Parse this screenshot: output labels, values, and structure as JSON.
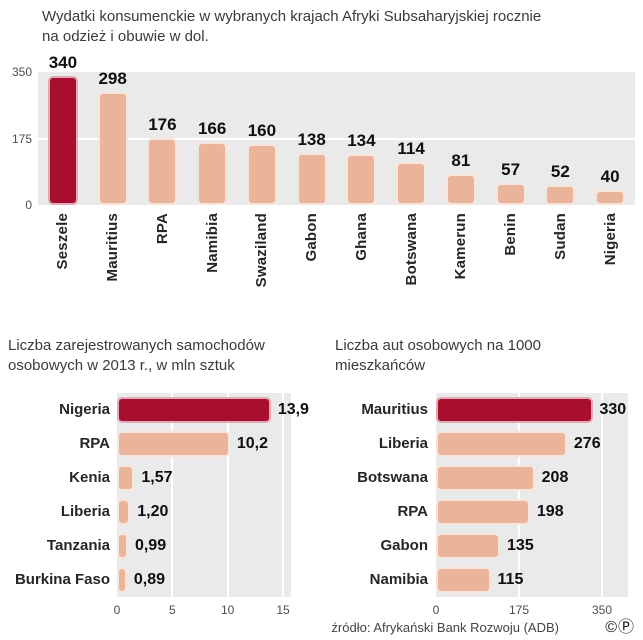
{
  "page": {
    "source": "źródło: Afrykański Bank Rozwoju (ADB)",
    "copyright": "©Ⓟ"
  },
  "colors": {
    "highlight": "#a80e2e",
    "bar": "#e9b49a",
    "plot_bg": "#eaeaea"
  },
  "chart_data": [
    {
      "type": "bar",
      "title": "Wydatki konsumenckie w wybranych krajach Afryki Subsaharyjskiej rocznie na odzież i obuwie w dol.",
      "categories": [
        "Seszele",
        "Mauritius",
        "RPA",
        "Namibia",
        "Swaziland",
        "Gabon",
        "Ghana",
        "Botswana",
        "Kamerun",
        "Benin",
        "Sudan",
        "Nigeria"
      ],
      "values": [
        340,
        298,
        176,
        166,
        160,
        138,
        134,
        114,
        81,
        57,
        52,
        40
      ],
      "value_labels": [
        "340",
        "298",
        "176",
        "166",
        "160",
        "138",
        "134",
        "114",
        "81",
        "57",
        "52",
        "40"
      ],
      "ylim": [
        0,
        350
      ],
      "yticks": [
        0,
        175,
        350
      ],
      "highlight_index": 0,
      "grid": "horizontal-midline",
      "legend": "none"
    },
    {
      "type": "bar-horizontal",
      "title": "Liczba zarejestrowanych samochodów osobowych w 2013 r., w mln sztuk",
      "categories": [
        "Nigeria",
        "RPA",
        "Kenia",
        "Liberia",
        "Tanzania",
        "Burkina Faso"
      ],
      "values": [
        13.9,
        10.2,
        1.57,
        1.2,
        0.99,
        0.89
      ],
      "value_labels": [
        "13,9",
        "10,2",
        "1,57",
        "1,20",
        "0,99",
        "0,89"
      ],
      "xlim": [
        0,
        15
      ],
      "xticks": [
        0,
        5,
        10,
        15
      ],
      "xtick_labels": [
        "0",
        "5",
        "10",
        "15"
      ],
      "highlight_index": 0,
      "legend": "none"
    },
    {
      "type": "bar-horizontal",
      "title": "Liczba aut osobowych na 1000 mieszkańców",
      "categories": [
        "Mauritius",
        "Liberia",
        "Botswana",
        "RPA",
        "Gabon",
        "Namibia"
      ],
      "values": [
        330,
        276,
        208,
        198,
        135,
        115
      ],
      "value_labels": [
        "330",
        "276",
        "208",
        "198",
        "135",
        "115"
      ],
      "xlim": [
        0,
        350
      ],
      "xticks": [
        0,
        175,
        350
      ],
      "xtick_labels": [
        "0",
        "175",
        "350"
      ],
      "highlight_index": 0,
      "legend": "none"
    }
  ]
}
